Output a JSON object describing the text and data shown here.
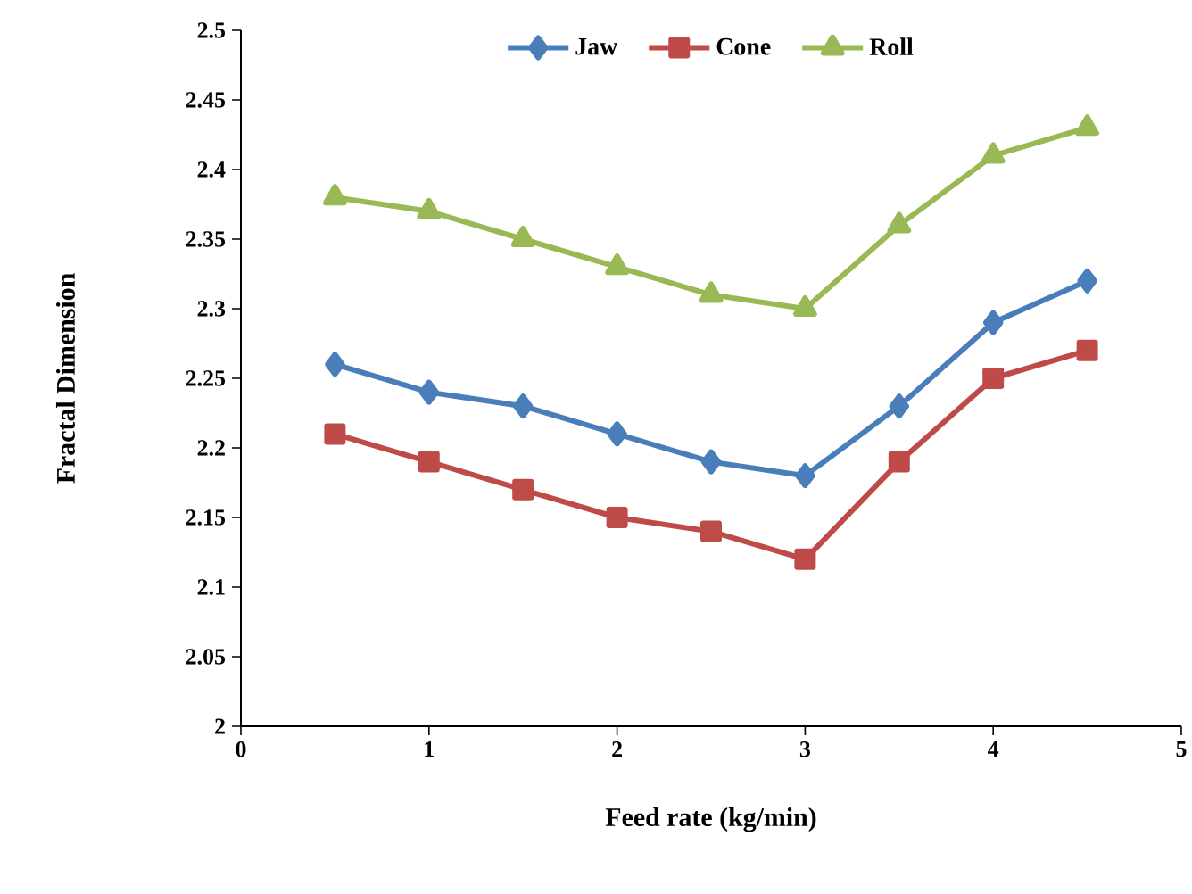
{
  "chart_data": {
    "type": "line",
    "xlabel": "Feed rate (kg/min)",
    "ylabel": "Fractal Dimension",
    "x": [
      0.5,
      1,
      1.5,
      2,
      2.5,
      3,
      3.5,
      4,
      4.5
    ],
    "series": [
      {
        "name": "Jaw",
        "color": "#4a7ebb",
        "marker": "diamond",
        "values": [
          2.26,
          2.24,
          2.23,
          2.21,
          2.19,
          2.18,
          2.23,
          2.29,
          2.32
        ]
      },
      {
        "name": "Cone",
        "color": "#be4b48",
        "marker": "square",
        "values": [
          2.21,
          2.19,
          2.17,
          2.15,
          2.14,
          2.12,
          2.19,
          2.25,
          2.27
        ]
      },
      {
        "name": "Roll",
        "color": "#98b954",
        "marker": "triangle",
        "values": [
          2.38,
          2.37,
          2.35,
          2.33,
          2.31,
          2.3,
          2.36,
          2.41,
          2.43
        ]
      }
    ],
    "xlim": [
      0,
      5
    ],
    "xticks": [
      0,
      1,
      2,
      3,
      4,
      5
    ],
    "ylim": [
      2,
      2.5
    ],
    "yticks": [
      2,
      2.05,
      2.1,
      2.15,
      2.2,
      2.25,
      2.3,
      2.35,
      2.4,
      2.45,
      2.5
    ],
    "grid": false,
    "legend": "top",
    "line_style": "solid"
  }
}
